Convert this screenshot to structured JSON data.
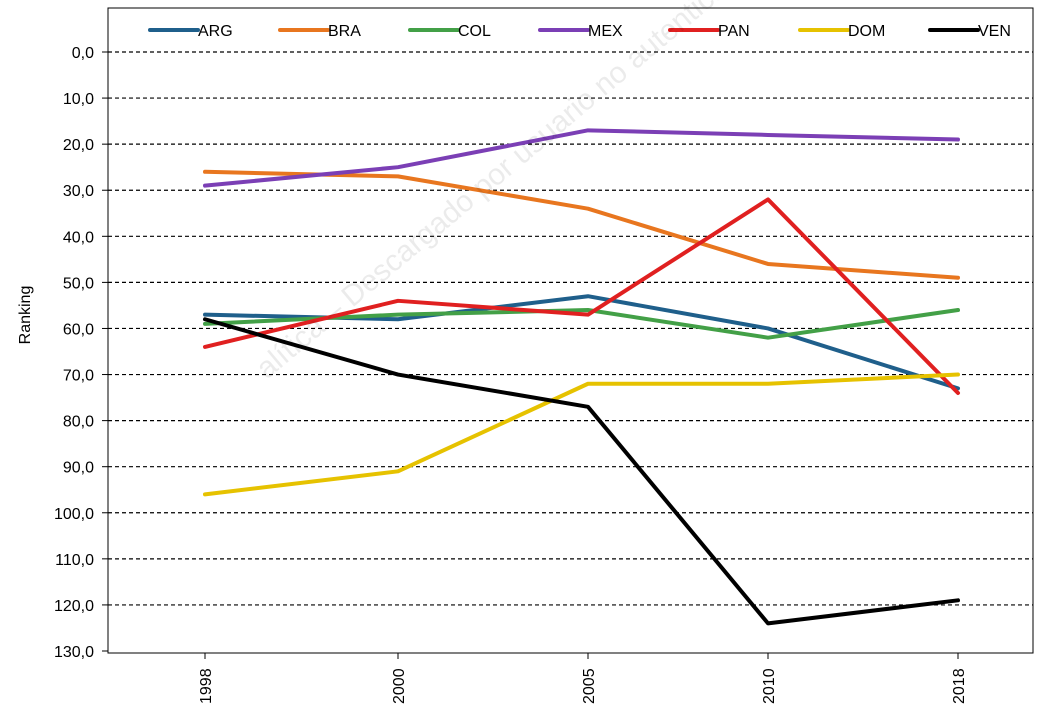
{
  "chart_data": {
    "type": "line",
    "title": "",
    "xlabel": "",
    "ylabel": "Ranking",
    "y_inverted": true,
    "ylim": [
      0,
      130
    ],
    "yticks": [
      "0,0",
      "10,0",
      "20,0",
      "30,0",
      "40,0",
      "50,0",
      "60,0",
      "70,0",
      "80,0",
      "90,0",
      "100,0",
      "110,0",
      "120,0",
      "130,0"
    ],
    "categories": [
      "1998",
      "2000",
      "2005",
      "2010",
      "2018"
    ],
    "grid": "horizontal-dashed",
    "legend": "top",
    "series": [
      {
        "name": "ARG",
        "color": "#1f5f8b",
        "values": [
          57,
          58,
          53,
          60,
          73
        ]
      },
      {
        "name": "BRA",
        "color": "#e8761f",
        "values": [
          26,
          27,
          34,
          46,
          49
        ]
      },
      {
        "name": "COL",
        "color": "#43a047",
        "values": [
          59,
          57,
          56,
          62,
          56
        ]
      },
      {
        "name": "MEX",
        "color": "#7b3fb5",
        "values": [
          29,
          25,
          17,
          18,
          19
        ]
      },
      {
        "name": "PAN",
        "color": "#e02020",
        "values": [
          64,
          54,
          57,
          32,
          74
        ]
      },
      {
        "name": "DOM",
        "color": "#e6c200",
        "values": [
          96,
          91,
          72,
          72,
          70
        ]
      },
      {
        "name": "VEN",
        "color": "#000000",
        "values": [
          58,
          70,
          77,
          124,
          119
        ]
      }
    ]
  },
  "watermark": "alítica – Descargado por usuario no autenticado"
}
